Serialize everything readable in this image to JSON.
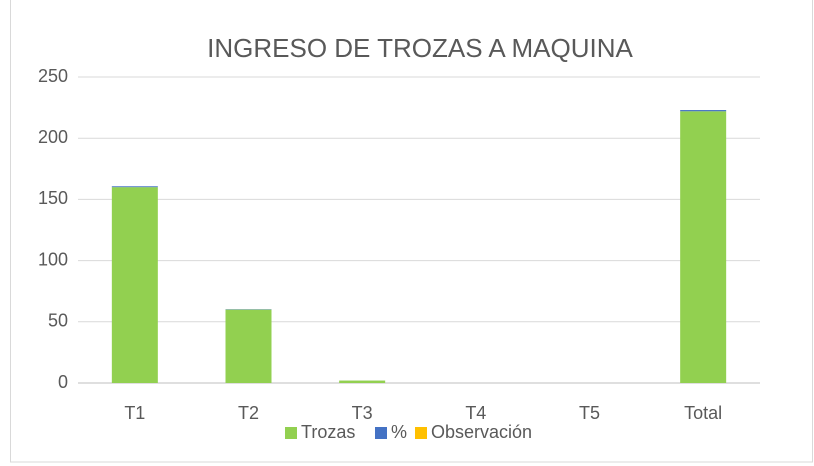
{
  "chart_data": {
    "type": "bar",
    "stacked": true,
    "title": "INGRESO DE TROZAS A MAQUINA",
    "categories": [
      "T1",
      "T2",
      "T3",
      "T4",
      "T5",
      "Total"
    ],
    "series": [
      {
        "name": "Trozas",
        "color": "#92d050",
        "values": [
          160,
          60,
          2,
          0,
          0,
          222
        ]
      },
      {
        "name": "%",
        "color": "#4472c4",
        "values": [
          0.72,
          0.27,
          0.01,
          0,
          0,
          1
        ]
      },
      {
        "name": "Observación",
        "color": "#ffc000",
        "values": [
          0,
          0,
          0,
          0,
          0,
          0
        ]
      }
    ],
    "ylim": [
      0,
      250
    ],
    "yticks": [
      0,
      50,
      100,
      150,
      200,
      250
    ],
    "grid": true,
    "legend": "bottom"
  }
}
